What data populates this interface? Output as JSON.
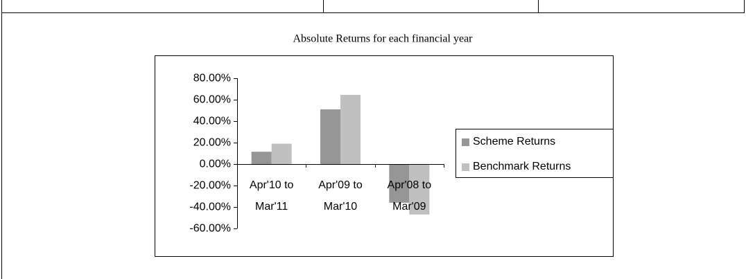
{
  "chart_data": {
    "type": "bar",
    "title": "Absolute Returns for each financial year",
    "categories": [
      [
        "Apr'10 to",
        "Mar'11"
      ],
      [
        "Apr'09 to",
        "Mar'10"
      ],
      [
        "Apr'08 to",
        "Mar'09"
      ]
    ],
    "series": [
      {
        "name": "Scheme Returns",
        "color": "#969696",
        "values": [
          11.5,
          51,
          -36
        ]
      },
      {
        "name": "Benchmark Returns",
        "color": "#c0c0c0",
        "values": [
          19,
          64.5,
          -47
        ]
      }
    ],
    "ylim": [
      -60,
      80
    ],
    "yticks": [
      {
        "value": -60,
        "label": "-60.00%"
      },
      {
        "value": -40,
        "label": "-40.00%"
      },
      {
        "value": -20,
        "label": "-20.00%"
      },
      {
        "value": 0,
        "label": "0.00%"
      },
      {
        "value": 20,
        "label": "20.00%"
      },
      {
        "value": 40,
        "label": "40.00%"
      },
      {
        "value": 60,
        "label": "60.00%"
      },
      {
        "value": 80,
        "label": "80.00%"
      }
    ],
    "grid": false,
    "legend": "right"
  }
}
